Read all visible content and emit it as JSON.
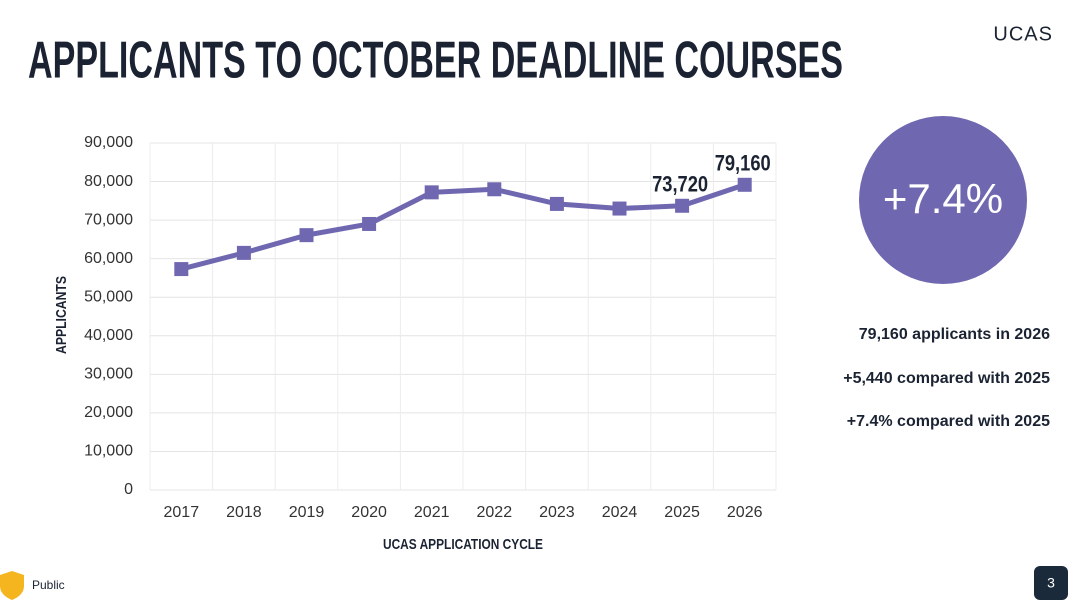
{
  "chart_data": {
    "type": "line",
    "title": "APPLICANTS TO OCTOBER DEADLINE COURSES",
    "x_label": "UCAS APPLICATION CYCLE",
    "y_label": "APPLICANTS",
    "categories": [
      "2017",
      "2018",
      "2019",
      "2020",
      "2021",
      "2022",
      "2023",
      "2024",
      "2025",
      "2026"
    ],
    "series": [
      {
        "name": "Applicants",
        "color": "#6f68b0",
        "values": [
          57300,
          61500,
          66100,
          69000,
          77200,
          78000,
          74200,
          73000,
          73720,
          79160
        ],
        "value_labels": [
          null,
          null,
          null,
          null,
          null,
          null,
          null,
          null,
          "73,720",
          "79,160"
        ]
      }
    ],
    "ylim": [
      0,
      90000
    ],
    "yticks": [
      0,
      {
        "value": 10000,
        "label": "10,000"
      },
      {
        "value": 20000,
        "label": "20,000"
      },
      {
        "value": 30000,
        "label": "30,000"
      },
      {
        "value": 40000,
        "label": "40,000"
      },
      {
        "value": 50000,
        "label": "50,000"
      },
      {
        "value": 60000,
        "label": "60,000"
      },
      {
        "value": 70000,
        "label": "70,000"
      },
      {
        "value": 80000,
        "label": "80,000"
      },
      {
        "value": 90000,
        "label": "90,000"
      }
    ],
    "grid": true
  },
  "logo": "UCAS",
  "badge": "+7.4%",
  "stats": [
    "79,160 applicants in 2026",
    "+5,440 compared with 2025",
    "+7.4% compared with 2025"
  ],
  "footer": {
    "classification": "Public",
    "page": "3"
  }
}
